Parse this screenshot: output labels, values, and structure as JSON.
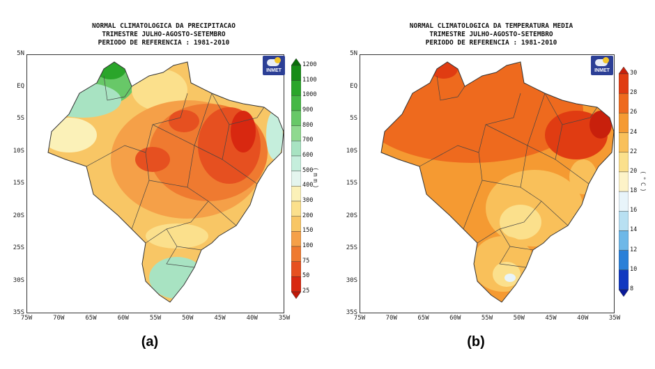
{
  "panel_a": {
    "letter": "(a)",
    "title_lines": [
      "NORMAL CLIMATOLOGICA DA PRECIPITACAO",
      "TRIMESTRE JULHO-AGOSTO-SETEMBRO",
      "PERIODO DE REFERENCIA : 1981-2010"
    ],
    "logo_text": "INMET",
    "unit": "(mm)",
    "colorbar_levels": [
      "1200",
      "1100",
      "1000",
      "900",
      "800",
      "700",
      "600",
      "500",
      "400",
      "300",
      "200",
      "150",
      "100",
      "75",
      "50",
      "25"
    ],
    "colorbar_colors": [
      "#0a6e0a",
      "#178c17",
      "#2aa52a",
      "#45b845",
      "#68c868",
      "#8fd98f",
      "#a8e3c2",
      "#c5eedc",
      "#e4f5ee",
      "#fbf1b8",
      "#fbe08c",
      "#f8c665",
      "#f5a048",
      "#ef7a30",
      "#e65020",
      "#d82810",
      "#c01808"
    ]
  },
  "panel_b": {
    "letter": "(b)",
    "title_lines": [
      "NORMAL CLIMATOLOGICA DA TEMPERATURA MEDIA",
      "TRIMESTRE JULHO-AGOSTO-SETEMBRO",
      "PERIODO DE REFERENCIA : 1981-2010"
    ],
    "logo_text": "INMET",
    "unit": "(°C)",
    "colorbar_levels": [
      "30",
      "28",
      "26",
      "24",
      "22",
      "20",
      "18",
      "16",
      "14",
      "12",
      "10",
      "8"
    ],
    "colorbar_colors": [
      "#c8200c",
      "#e03c12",
      "#ee6a1e",
      "#f59a32",
      "#f9c05a",
      "#fbe08c",
      "#fdf3c8",
      "#e8f4fa",
      "#b8e0f2",
      "#6eb8e8",
      "#2a80d8",
      "#1038c0",
      "#0a1a9a"
    ]
  },
  "axes": {
    "lat_ticks": [
      "5N",
      "EQ",
      "5S",
      "10S",
      "15S",
      "20S",
      "25S",
      "30S",
      "35S"
    ],
    "lon_ticks": [
      "75W",
      "70W",
      "65W",
      "60W",
      "55W",
      "50W",
      "45W",
      "40W",
      "35W"
    ]
  },
  "colors": {
    "precip_background": "#f8c665",
    "temp_background": "#f59a32"
  }
}
